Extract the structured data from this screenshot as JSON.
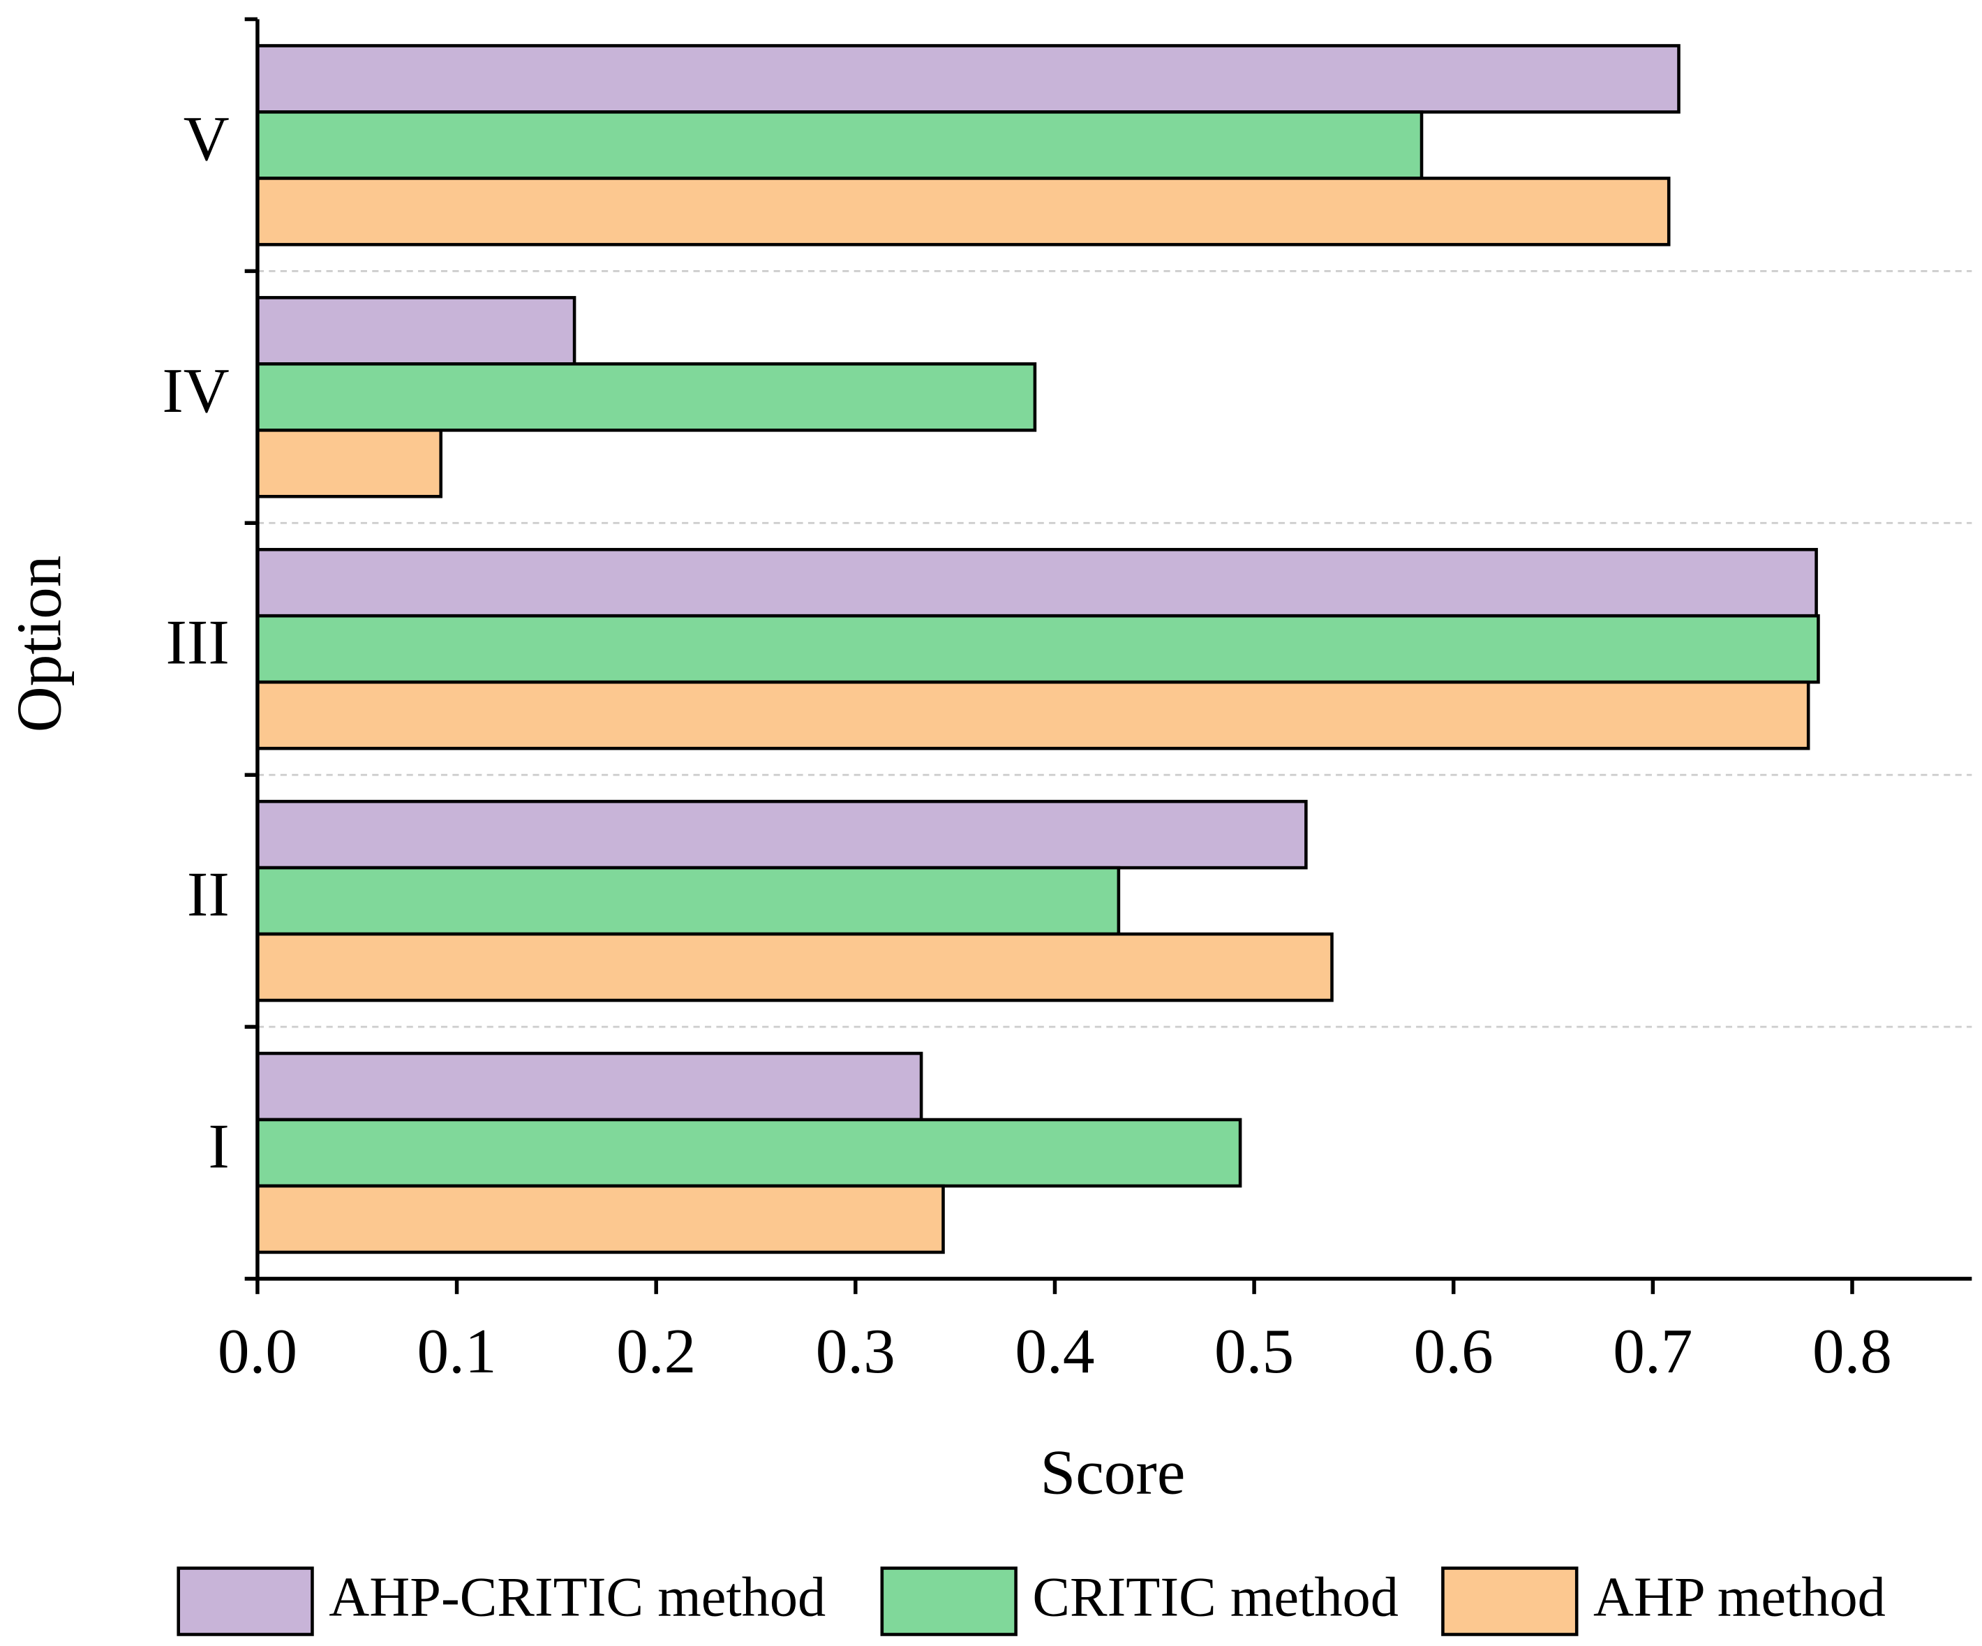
{
  "chart_data": {
    "type": "hbar",
    "categories": [
      "I",
      "II",
      "III",
      "IV",
      "V"
    ],
    "series": [
      {
        "name": "AHP-CRITIC method",
        "color": "#c8b4d8",
        "values": [
          0.333,
          0.526,
          0.782,
          0.159,
          0.713
        ]
      },
      {
        "name": "CRITIC method",
        "color": "#80d89a",
        "values": [
          0.493,
          0.432,
          0.783,
          0.39,
          0.584
        ]
      },
      {
        "name": "AHP method",
        "color": "#fcc890",
        "values": [
          0.344,
          0.539,
          0.778,
          0.092,
          0.708
        ]
      }
    ],
    "xlim": [
      0,
      0.86
    ],
    "xticks": [
      {
        "value": 0,
        "label": "0.0"
      },
      0.1,
      0.2,
      0.3,
      0.4,
      0.5,
      0.6,
      0.7,
      0.8
    ],
    "x_label": "Score",
    "y_label": "Option",
    "grid": true,
    "legend": "bottom"
  }
}
